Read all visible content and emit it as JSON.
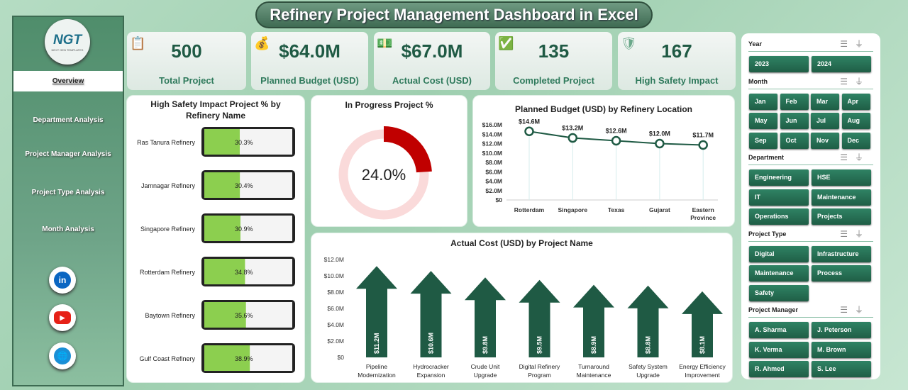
{
  "title": "Refinery Project Management Dashboard in Excel",
  "logo": {
    "text": "NGT",
    "tagline": "NEXT GEN TEMPLATES"
  },
  "sidebar": {
    "items": [
      {
        "label": "Overview",
        "active": true
      },
      {
        "label": "Department Analysis"
      },
      {
        "label": "Project Manager Analysis"
      },
      {
        "label": "Project Type Analysis"
      },
      {
        "label": "Month Analysis"
      }
    ],
    "social": [
      {
        "icon": "linkedin-icon",
        "text": "in",
        "color": "#0a66c2"
      },
      {
        "icon": "youtube-icon",
        "text": "▶",
        "color": "#e62117"
      },
      {
        "icon": "globe-icon",
        "text": "🌐",
        "color": "#1a8fd6"
      }
    ]
  },
  "kpis": [
    {
      "value": "500",
      "label": "Total Project",
      "icon": "clipboard-icon"
    },
    {
      "value": "$64.0M",
      "label": "Planned Budget (USD)",
      "icon": "money-bag-icon"
    },
    {
      "value": "$67.0M",
      "label": "Actual Cost (USD)",
      "icon": "cash-icon"
    },
    {
      "value": "135",
      "label": "Completed Project",
      "icon": "checklist-icon"
    },
    {
      "value": "167",
      "label": "High Safety Impact",
      "icon": "shield-check-icon"
    }
  ],
  "chart_data": [
    {
      "type": "bar",
      "orientation": "horizontal",
      "title": "High Safety Impact Project % by Refinery Name",
      "categories": [
        "Ras Tanura Refinery",
        "Jamnagar Refinery",
        "Singapore Refinery",
        "Rotterdam Refinery",
        "Baytown Refinery",
        "Gulf Coast Refinery"
      ],
      "values": [
        30.3,
        30.4,
        30.9,
        34.8,
        35.6,
        38.9
      ],
      "labels": [
        "30.3%",
        "30.4%",
        "30.9%",
        "34.8%",
        "35.6%",
        "38.9%"
      ],
      "xlim": [
        0,
        100
      ],
      "color": "#8ccf4f"
    },
    {
      "type": "pie",
      "variant": "donut",
      "title": "In Progress Project %",
      "value": 24.0,
      "label": "24.0%",
      "colors": {
        "fill": "#c00000",
        "track": "#fadada"
      }
    },
    {
      "type": "line",
      "title": "Planned Budget (USD) by Refinery Location",
      "categories": [
        "Rotterdam",
        "Singapore",
        "Texas",
        "Gujarat",
        "Eastern Province"
      ],
      "values": [
        14.6,
        13.2,
        12.6,
        12.0,
        11.7
      ],
      "labels": [
        "$14.6M",
        "$13.2M",
        "$12.6M",
        "$12.0M",
        "$11.7M"
      ],
      "ylim": [
        0,
        16
      ],
      "yticks": [
        "$0",
        "$2.0M",
        "$4.0M",
        "$6.0M",
        "$8.0M",
        "$10.0M",
        "$12.0M",
        "$14.0M",
        "$16.0M"
      ],
      "color": "#1f5a44"
    },
    {
      "type": "bar",
      "variant": "arrow",
      "title": "Actual Cost (USD) by Project Name",
      "categories": [
        "Pipeline Modernization",
        "Hydrocracker Expansion",
        "Crude Unit Upgrade",
        "Digital Refinery Program",
        "Turnaround Maintenance",
        "Safety System Upgrade",
        "Energy Efficiency Improvement"
      ],
      "values": [
        11.2,
        10.6,
        9.8,
        9.5,
        8.9,
        8.8,
        8.1
      ],
      "labels": [
        "$11.2M",
        "$10.6M",
        "$9.8M",
        "$9.5M",
        "$8.9M",
        "$8.8M",
        "$8.1M"
      ],
      "ylim": [
        0,
        12
      ],
      "yticks": [
        "$0",
        "$2.0M",
        "$4.0M",
        "$6.0M",
        "$8.0M",
        "$10.0M",
        "$12.0M"
      ],
      "color": "#1f5a44"
    }
  ],
  "slicers": [
    {
      "title": "Year",
      "cols": 2,
      "items": [
        "2023",
        "2024"
      ]
    },
    {
      "title": "Month",
      "cols": 4,
      "items": [
        "Jan",
        "Feb",
        "Mar",
        "Apr",
        "May",
        "Jun",
        "Jul",
        "Aug",
        "Sep",
        "Oct",
        "Nov",
        "Dec"
      ]
    },
    {
      "title": "Department",
      "cols": 2,
      "items": [
        "Engineering",
        "HSE",
        "IT",
        "Maintenance",
        "Operations",
        "Projects"
      ]
    },
    {
      "title": "Project Type",
      "cols": 2,
      "items": [
        "Digital",
        "Infrastructure",
        "Maintenance",
        "Process",
        "Safety"
      ]
    },
    {
      "title": "Project Manager",
      "cols": 2,
      "items": [
        "A. Sharma",
        "J. Peterson",
        "K. Verma",
        "M. Brown",
        "R. Ahmed",
        "S. Lee"
      ]
    }
  ]
}
